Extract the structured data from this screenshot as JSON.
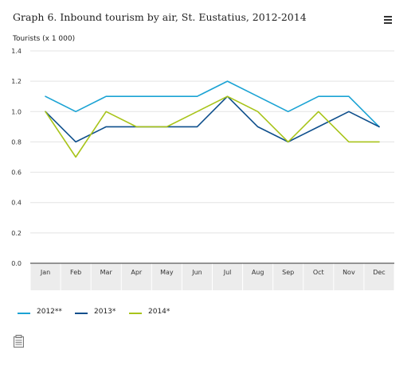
{
  "title": "Graph 6. Inbound tourism by air, St. Eustatius, 2012-2014",
  "menu_icon": "hamburger-menu-icon",
  "save_icon": "document-save-icon",
  "chart_data": {
    "type": "line",
    "title": "Graph 6. Inbound tourism by air, St. Eustatius, 2012-2014",
    "xlabel": "",
    "ylabel": "Tourists (x 1 000)",
    "categories": [
      "Jan",
      "Feb",
      "Mar",
      "Apr",
      "May",
      "Jun",
      "Jul",
      "Aug",
      "Sep",
      "Oct",
      "Nov",
      "Dec"
    ],
    "ylim": [
      0,
      1.4
    ],
    "yticks": [
      "0.0",
      "0.2",
      "0.4",
      "0.6",
      "0.8",
      "1.0",
      "1.2",
      "1.4"
    ],
    "grid": true,
    "legend": "bottom",
    "series": [
      {
        "name": "2012**",
        "color": "#1ba3d4",
        "values": [
          1.1,
          1.0,
          1.1,
          1.1,
          1.1,
          1.1,
          1.2,
          1.1,
          1.0,
          1.1,
          1.1,
          0.9
        ]
      },
      {
        "name": "2013*",
        "color": "#0e4f8c",
        "values": [
          1.0,
          0.8,
          0.9,
          0.9,
          0.9,
          0.9,
          1.1,
          0.9,
          0.8,
          0.9,
          1.0,
          0.9
        ]
      },
      {
        "name": "2014*",
        "color": "#a8c41a",
        "values": [
          1.0,
          0.7,
          1.0,
          0.9,
          0.9,
          1.0,
          1.1,
          1.0,
          0.8,
          1.0,
          0.8,
          0.8
        ]
      }
    ]
  }
}
